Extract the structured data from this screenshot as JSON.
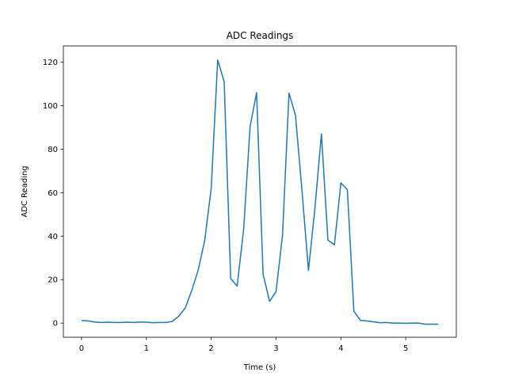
{
  "chart_data": {
    "type": "line",
    "title": "ADC Readings",
    "xlabel": "Time (s)",
    "ylabel": "ADC Reading",
    "xlim": [
      -0.28,
      5.78
    ],
    "ylim": [
      -6.5,
      127.5
    ],
    "xticks": [
      0,
      1,
      2,
      3,
      4,
      5
    ],
    "yticks": [
      0,
      20,
      40,
      60,
      80,
      100,
      120
    ],
    "grid": false,
    "line_color": "#1f77b4",
    "series": [
      {
        "x": [
          0.0,
          0.1,
          0.2,
          0.3,
          0.4,
          0.5,
          0.6,
          0.7,
          0.8,
          0.9,
          1.0,
          1.1,
          1.2,
          1.3,
          1.4,
          1.5,
          1.6,
          1.7,
          1.8,
          1.9,
          2.0,
          2.1,
          2.2,
          2.3,
          2.4,
          2.5,
          2.6,
          2.7,
          2.8,
          2.9,
          3.0,
          3.1,
          3.2,
          3.3,
          3.4,
          3.5,
          3.6,
          3.7,
          3.8,
          3.9,
          4.0,
          4.1,
          4.2,
          4.3,
          4.4,
          4.5,
          4.6,
          4.7,
          4.8,
          4.9,
          5.0,
          5.1,
          5.2,
          5.3,
          5.4,
          5.5
        ],
        "y": [
          1.2,
          1.0,
          0.5,
          0.3,
          0.4,
          0.3,
          0.3,
          0.4,
          0.3,
          0.5,
          0.4,
          0.2,
          0.3,
          0.3,
          0.8,
          3.2,
          7.0,
          15.0,
          24.5,
          38.0,
          62.0,
          121.0,
          111.0,
          20.5,
          17.0,
          43.0,
          90.5,
          106.0,
          22.5,
          10.0,
          14.5,
          40.5,
          105.8,
          95.5,
          61.0,
          24.2,
          53.0,
          87.0,
          38.2,
          36.0,
          64.5,
          61.3,
          5.5,
          1.3,
          1.0,
          0.6,
          0.2,
          0.3,
          0.0,
          0.0,
          -0.1,
          0.0,
          0.0,
          -0.5,
          -0.5,
          -0.5
        ]
      }
    ]
  }
}
